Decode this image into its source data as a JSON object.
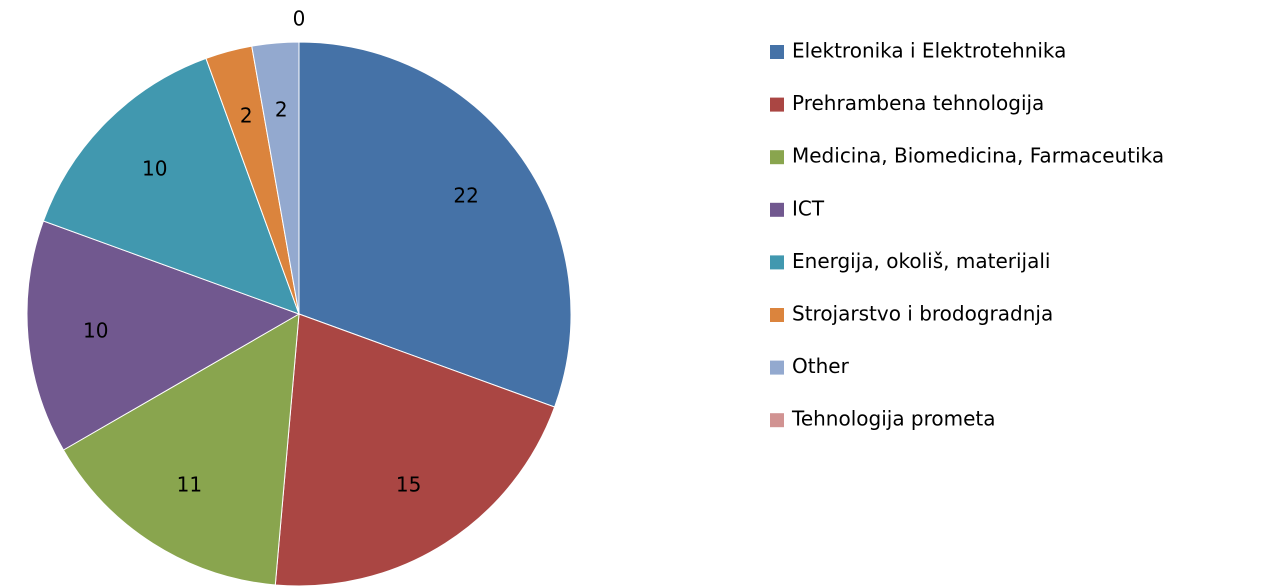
{
  "chart_data": {
    "type": "pie",
    "categories": [
      "Elektronika i Elektrotehnika",
      "Prehrambena tehnologija",
      "Medicina, Biomedicina, Farmaceutika",
      "ICT",
      "Energija, okoliš, materijali",
      "Strojarstvo i brodogradnja",
      "Other",
      "Tehnologija prometa"
    ],
    "values": [
      22,
      15,
      11,
      10,
      10,
      2,
      2,
      0
    ],
    "colors": [
      "#4572a7",
      "#aa4643",
      "#89a54e",
      "#71588f",
      "#4198af",
      "#db843d",
      "#93a9cf",
      "#d19392"
    ],
    "legend": "right"
  }
}
